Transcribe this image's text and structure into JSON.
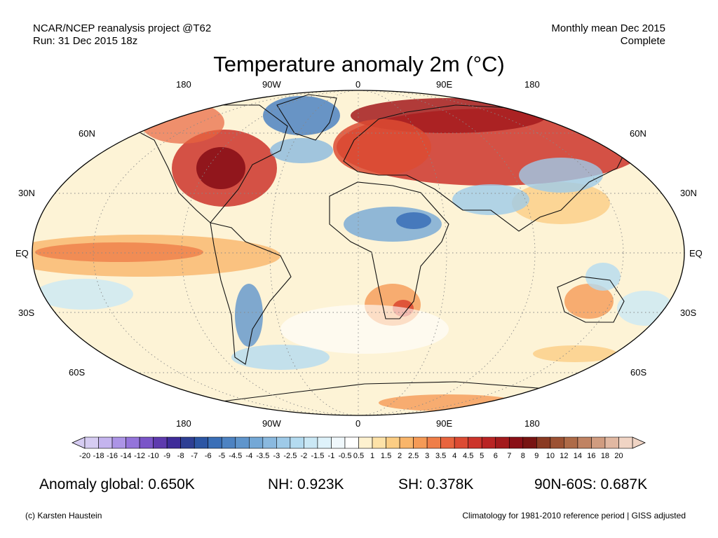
{
  "header": {
    "left_line1": "NCAR/NCEP reanalysis project @T62",
    "left_line2": "Run: 31 Dec 2015 18z",
    "right_line1": "Monthly mean Dec 2015",
    "right_line2": "Complete"
  },
  "title": "Temperature anomaly 2m (°C)",
  "axes": {
    "lon_top": [
      "180",
      "90W",
      "0",
      "90E",
      "180"
    ],
    "lon_bottom": [
      "180",
      "90W",
      "0",
      "90E",
      "180"
    ],
    "lat_left": [
      "60N",
      "30N",
      "EQ",
      "30S",
      "60S"
    ],
    "lat_right": [
      "60N",
      "30N",
      "EQ",
      "30S",
      "60S"
    ]
  },
  "colorbar": {
    "labels": [
      "-20",
      "-18",
      "-16",
      "-14",
      "-12",
      "-10",
      "-9",
      "-8",
      "-7",
      "-6",
      "-5",
      "-4.5",
      "-4",
      "-3.5",
      "-3",
      "-2.5",
      "-2",
      "-1.5",
      "-1",
      "-0.5",
      "0.5",
      "1",
      "1.5",
      "2",
      "2.5",
      "3",
      "3.5",
      "4",
      "4.5",
      "5",
      "6",
      "7",
      "8",
      "9",
      "10",
      "12",
      "14",
      "16",
      "18",
      "20"
    ],
    "colors": [
      "#d6ccf2",
      "#c4b4ee",
      "#ac94e6",
      "#9474da",
      "#7a55c8",
      "#5e3aae",
      "#3f2c99",
      "#2e3f94",
      "#2c56a4",
      "#3a6fb7",
      "#4d83c2",
      "#5f95cc",
      "#74a8d6",
      "#8ab9df",
      "#9ecae8",
      "#b4dbf0",
      "#cae8f5",
      "#def2fa",
      "#f0f8fc",
      "#ffffff",
      "#fdf1cf",
      "#fde2a8",
      "#fbcd84",
      "#f9b56a",
      "#f59a56",
      "#ef7e48",
      "#e8643e",
      "#dc4b33",
      "#cc342b",
      "#b92424",
      "#a31a1d",
      "#8a1017",
      "#781412",
      "#8a3a22",
      "#9c5233",
      "#ae6b48",
      "#c08363",
      "#d09c80",
      "#e1b8a2",
      "#f0d4c4"
    ]
  },
  "stats": {
    "global": "Anomaly global: 0.650K",
    "nh": "NH: 0.923K",
    "sh": "SH: 0.378K",
    "arctic": "90N-60S: 0.687K"
  },
  "footer": {
    "credit": "(c) Karsten Haustein",
    "note": "Climatology for 1981-2010 reference period | GISS adjusted"
  }
}
